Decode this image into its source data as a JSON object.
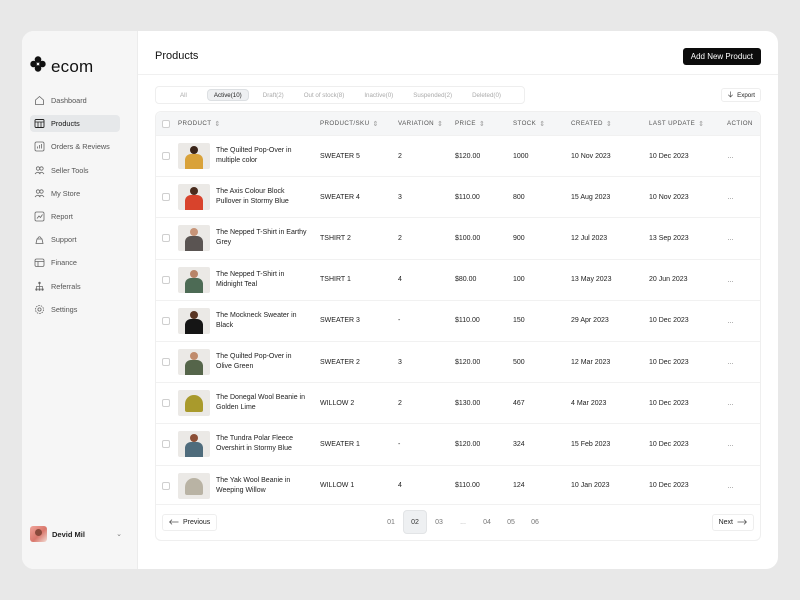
{
  "app": {
    "name": "ecom"
  },
  "sidebar": {
    "items": [
      {
        "label": "Dashboard",
        "icon": "home-icon",
        "active": false
      },
      {
        "label": "Products",
        "icon": "box-icon",
        "active": true
      },
      {
        "label": "Orders & Reviews",
        "icon": "orders-icon",
        "active": false
      },
      {
        "label": "Seller Tools",
        "icon": "users-icon",
        "active": false
      },
      {
        "label": "My Store",
        "icon": "store-icon",
        "active": false
      },
      {
        "label": "Report",
        "icon": "chart-icon",
        "active": false
      },
      {
        "label": "Support",
        "icon": "support-icon",
        "active": false
      },
      {
        "label": "Finance",
        "icon": "wallet-icon",
        "active": false
      },
      {
        "label": "Referrals",
        "icon": "network-icon",
        "active": false
      },
      {
        "label": "Settings",
        "icon": "gear-icon",
        "active": false
      }
    ],
    "user": {
      "name": "Devid Mil"
    }
  },
  "header": {
    "title": "Products",
    "add_button": "Add New Product"
  },
  "filters": {
    "tabs": [
      {
        "label": "All",
        "active": false
      },
      {
        "label": "Active(10)",
        "active": true
      },
      {
        "label": "Draft(2)",
        "active": false
      },
      {
        "label": "Out of stock(8)",
        "active": false
      },
      {
        "label": "Inactive(0)",
        "active": false
      },
      {
        "label": "Suspended(2)",
        "active": false
      },
      {
        "label": "Deleted(0)",
        "active": false
      }
    ],
    "export_label": "Export"
  },
  "table": {
    "columns": [
      "PRODUCT",
      "PRODUCT/SKU",
      "VARIATION",
      "PRICE",
      "STOCK",
      "CREATED",
      "LAST UPDATE",
      "ACTION"
    ],
    "rows": [
      {
        "name": "The Quilted Pop-Over in multiple color",
        "sku": "SWEATER 5",
        "variation": "2",
        "price": "$120.00",
        "stock": "1000",
        "created": "10 Nov 2023",
        "updated": "10 Dec 2023",
        "thumb": {
          "type": "person",
          "head": "#3a2418",
          "body": "#d9a23a"
        }
      },
      {
        "name": "The Axis Colour Block Pullover in Stormy Blue",
        "sku": "SWEATER 4",
        "variation": "3",
        "price": "$110.00",
        "stock": "800",
        "created": "15 Aug 2023",
        "updated": "10 Nov 2023",
        "thumb": {
          "type": "person",
          "head": "#4a2c1e",
          "body": "#d8432c"
        }
      },
      {
        "name": "The Nepped T-Shirt in Earthy Grey",
        "sku": "TSHIRT 2",
        "variation": "2",
        "price": "$100.00",
        "stock": "900",
        "created": "12 Jul 2023",
        "updated": "13 Sep 2023",
        "thumb": {
          "type": "person",
          "head": "#c79478",
          "body": "#5a5452"
        }
      },
      {
        "name": "The Nepped T-Shirt in Midnight Teal",
        "sku": "TSHIRT 1",
        "variation": "4",
        "price": "$80.00",
        "stock": "100",
        "created": "13 May 2023",
        "updated": "20 Jun 2023",
        "thumb": {
          "type": "person",
          "head": "#b88468",
          "body": "#4d6b55"
        }
      },
      {
        "name": "The Mockneck Sweater in Black",
        "sku": "SWEATER 3",
        "variation": "-",
        "price": "$110.00",
        "stock": "150",
        "created": "29 Apr 2023",
        "updated": "10 Dec 2023",
        "thumb": {
          "type": "person",
          "head": "#5a3624",
          "body": "#151515"
        }
      },
      {
        "name": "The Quilted Pop-Over in Olive Green",
        "sku": "SWEATER 2",
        "variation": "3",
        "price": "$120.00",
        "stock": "500",
        "created": "12 Mar 2023",
        "updated": "10 Dec 2023",
        "thumb": {
          "type": "person",
          "head": "#c08b6c",
          "body": "#55654a"
        }
      },
      {
        "name": "The Donegal Wool Beanie in Golden Lime",
        "sku": "WILLOW 2",
        "variation": "2",
        "price": "$130.00",
        "stock": "467",
        "created": "4 Mar 2023",
        "updated": "10 Dec 2023",
        "thumb": {
          "type": "beanie",
          "color": "#a99a2c"
        }
      },
      {
        "name": "The Tundra Polar Fleece Overshirt in Stormy Blue",
        "sku": "SWEATER 1",
        "variation": "-",
        "price": "$120.00",
        "stock": "324",
        "created": "15 Feb 2023",
        "updated": "10 Dec 2023",
        "thumb": {
          "type": "person",
          "head": "#8c4f36",
          "body": "#4f6c7c"
        }
      },
      {
        "name": "The Yak Wool Beanie in Weeping Willow",
        "sku": "WILLOW 1",
        "variation": "4",
        "price": "$110.00",
        "stock": "124",
        "created": "10 Jan 2023",
        "updated": "10 Dec 2023",
        "thumb": {
          "type": "beanie",
          "color": "#b9b3a4"
        }
      }
    ]
  },
  "pagination": {
    "previous": "Previous",
    "next": "Next",
    "pages": [
      "01",
      "02",
      "03",
      "...",
      "04",
      "05",
      "06"
    ],
    "current": "02"
  }
}
